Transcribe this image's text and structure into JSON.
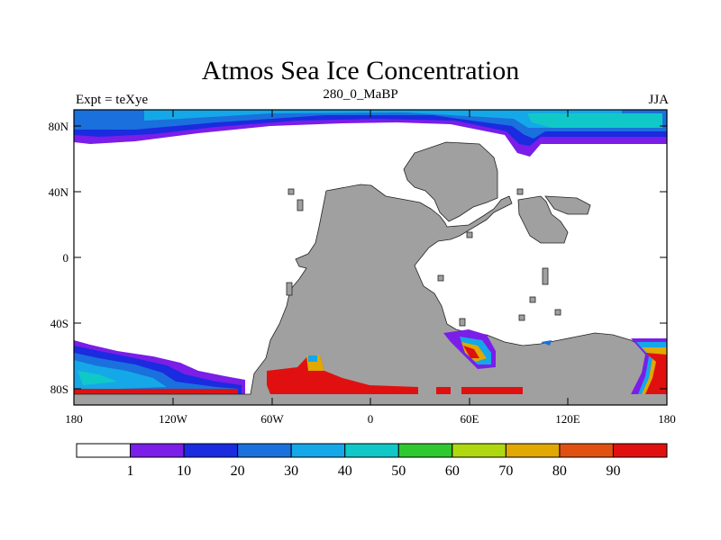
{
  "header": {
    "title": "Atmos Sea Ice Concentration",
    "left_label": "Expt = teXye",
    "center_label": "280_0_MaBP",
    "right_label": "JJA"
  },
  "map": {
    "lat_ticks": [
      "80N",
      "40N",
      "0",
      "40S",
      "80S"
    ],
    "lon_ticks": [
      "180",
      "120W",
      "60W",
      "0",
      "60E",
      "120E",
      "180"
    ],
    "land_color": "#a0a0a0",
    "ocean_color": "#ffffff"
  },
  "colorbar": {
    "labels": [
      "1",
      "10",
      "20",
      "30",
      "40",
      "50",
      "60",
      "70",
      "80",
      "90"
    ],
    "colors": [
      "#ffffff",
      "#7a1ee8",
      "#1a2be0",
      "#1a70dc",
      "#14a8e8",
      "#10c8c8",
      "#30c830",
      "#b0d810",
      "#e0a800",
      "#e05010",
      "#e01010"
    ]
  }
}
